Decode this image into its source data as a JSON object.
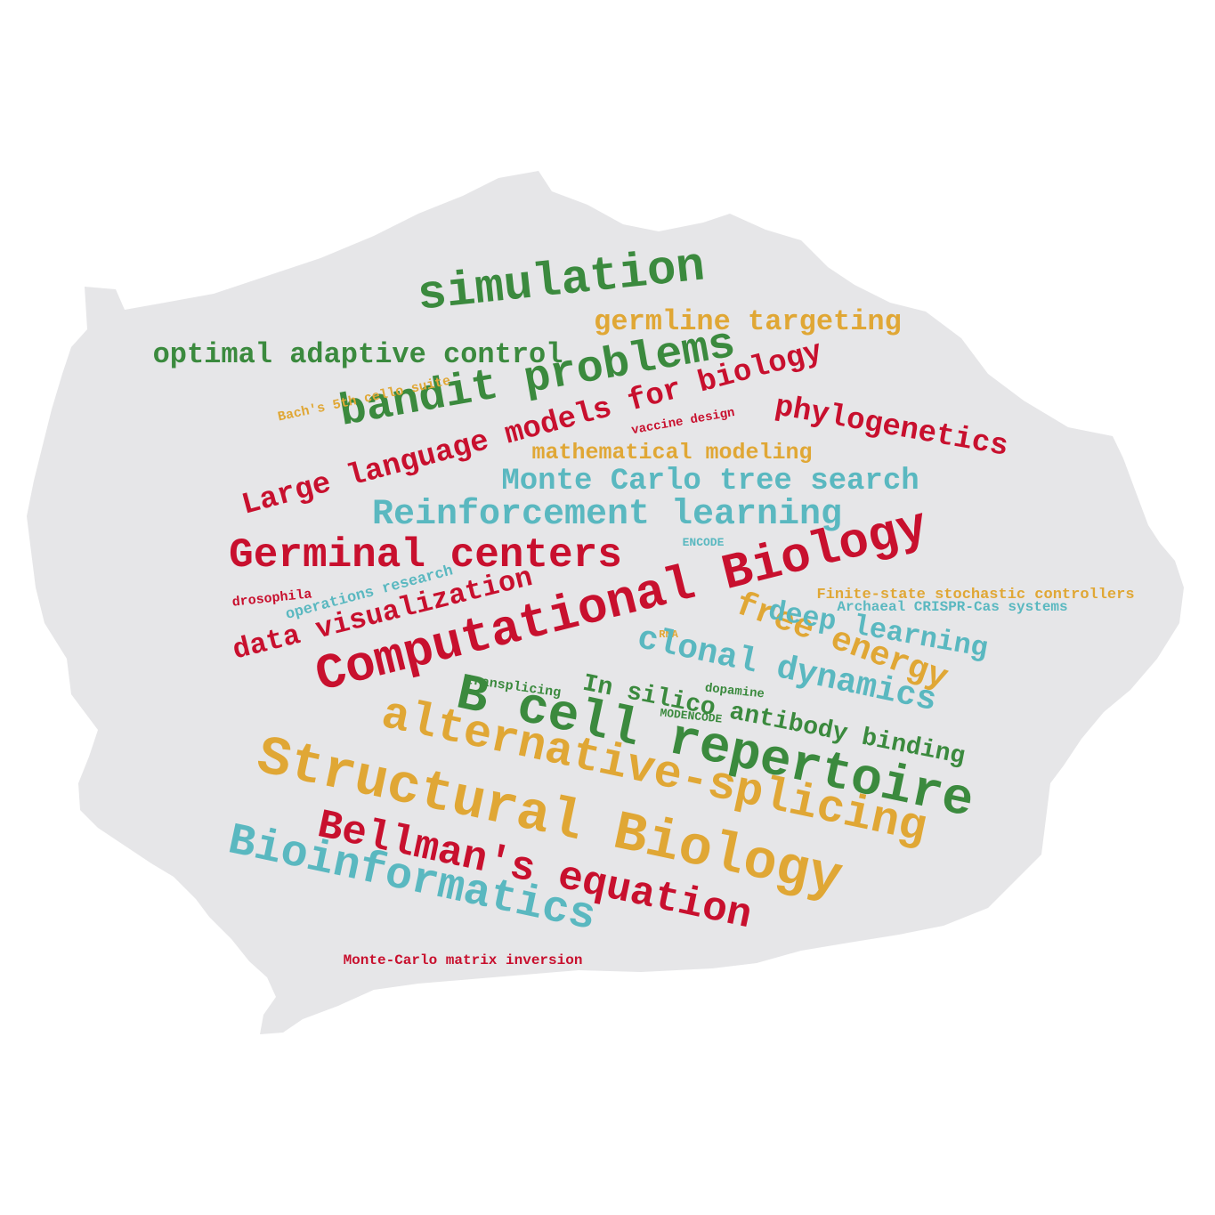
{
  "colors": {
    "background": "#ffffff",
    "island": "#e6e6e8",
    "red": "#c8102e",
    "green": "#3b8a3e",
    "orange": "#e0a735",
    "teal": "#5ab8c0"
  },
  "words": {
    "simulation": "simulation",
    "germline_targeting": "germline targeting",
    "optimal_adaptive_control": "optimal adaptive control",
    "bandit_problems": "bandit problems",
    "bachs_cello_suite": "Bach's 5th cello suite",
    "large_language_models": "Large language models for biology",
    "phylogenetics": "phylogenetics",
    "vaccine_design": "vaccine design",
    "mathematical_modeling": "mathematical modeling",
    "monte_carlo_tree_search": "Monte Carlo tree search",
    "reinforcement_learning": "Reinforcement learning",
    "encode": "ENCODE",
    "germinal_centers": "Germinal centers",
    "computational_biology": "Computational Biology",
    "finite_state_controllers": "Finite-state stochastic controllers",
    "archaeal_crispr": "Archaeal CRISPR-Cas systems",
    "drosophila": "drosophila",
    "operations_research": "operations research",
    "data_visualization": "data visualization",
    "free_energy": "free energy",
    "deep_learning": "deep learning",
    "rna": "RNA",
    "clonal_dynamics": "clonal dynamics",
    "in_silico_binding": "In silico antibody binding",
    "transplicing": "transplicing",
    "dopamine": "dopamine",
    "modencode": "MODENCODE",
    "b_cell_repertoire": "B cell repertoire",
    "alternative_splicing": "alternative-splicing",
    "structural_biology": "Structural Biology",
    "bellmans_equation": "Bellman's equation",
    "bioinformatics": "Bioinformatics",
    "monte_carlo_matrix_inversion": "Monte-Carlo matrix inversion"
  }
}
